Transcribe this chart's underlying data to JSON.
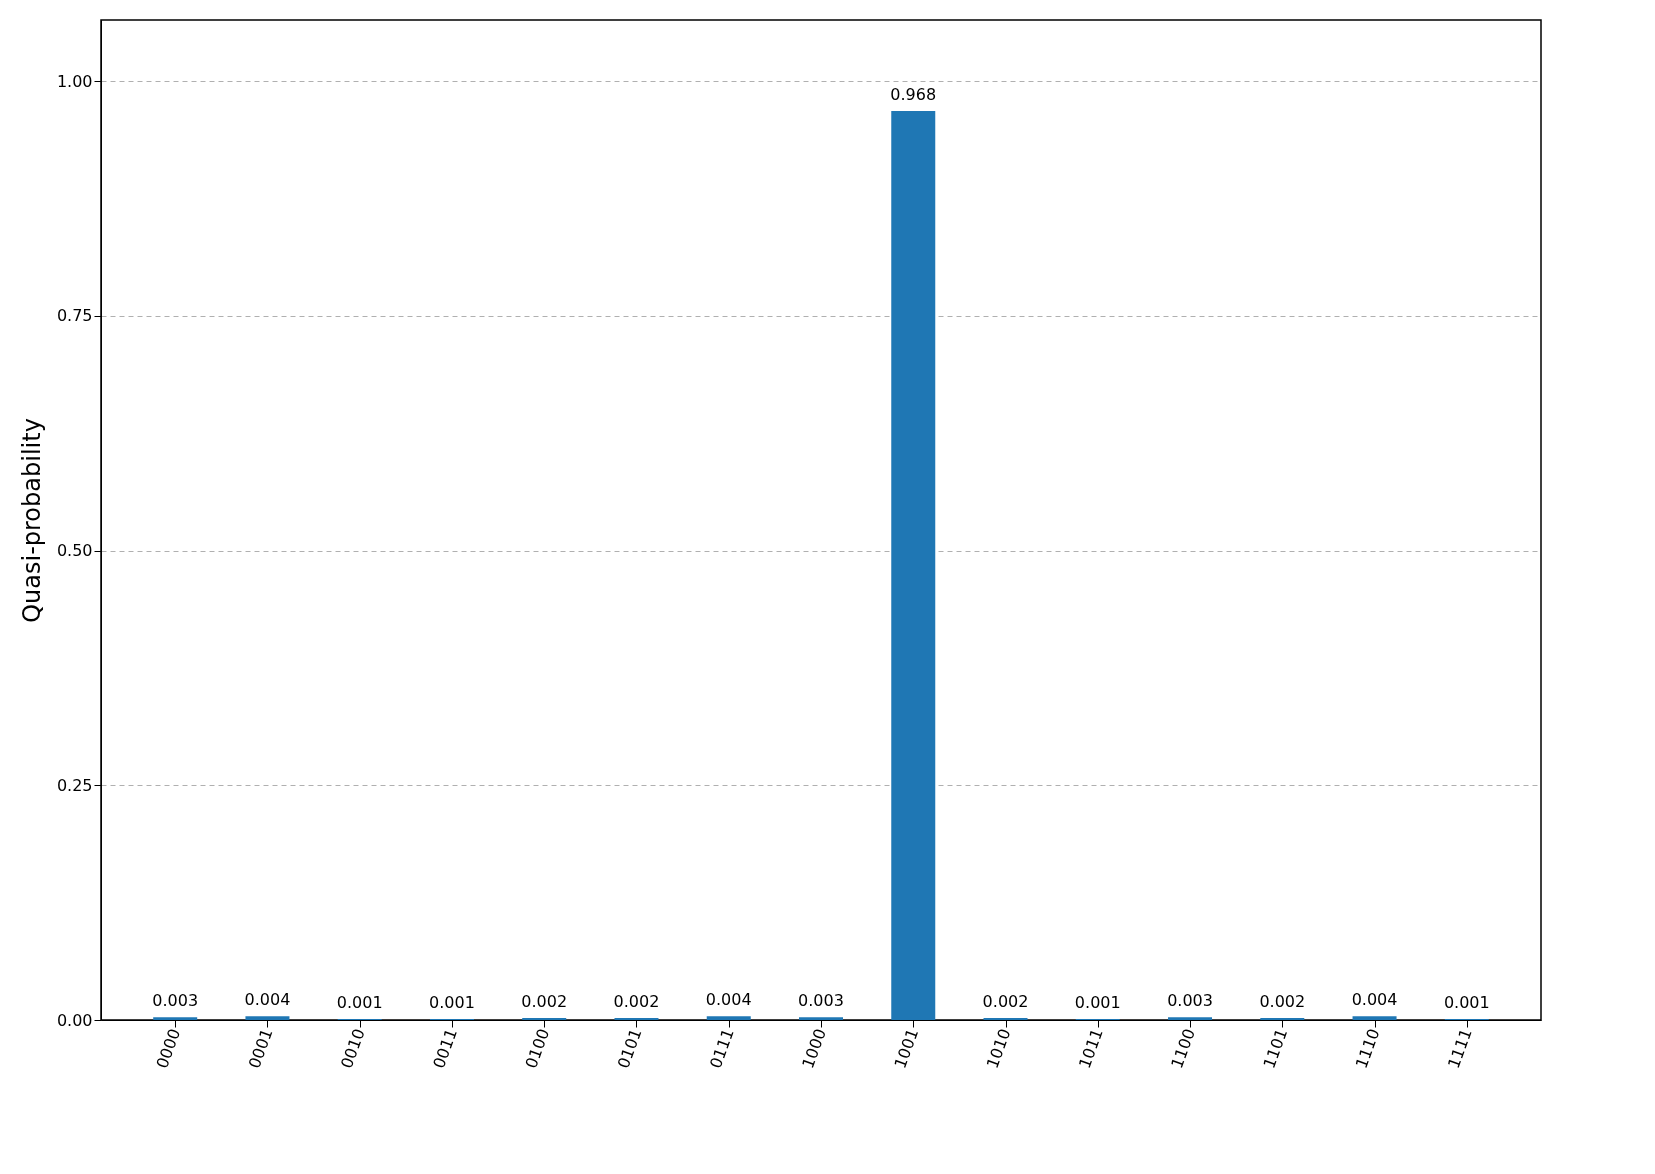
{
  "chart_data": {
    "type": "bar",
    "ylabel": "Quasi-probability",
    "categories": [
      "0000",
      "0001",
      "0010",
      "0011",
      "0100",
      "0101",
      "0111",
      "1000",
      "1001",
      "1010",
      "1011",
      "1100",
      "1101",
      "1110",
      "1111"
    ],
    "values": [
      0.003,
      0.004,
      0.001,
      0.001,
      0.002,
      0.002,
      0.004,
      0.003,
      0.968,
      0.002,
      0.001,
      0.003,
      0.002,
      0.004,
      0.001
    ],
    "color": "#1f77b4",
    "ylim": [
      0,
      1.065
    ],
    "yticks": [
      {
        "value": 0,
        "label": "0.00"
      },
      {
        "value": 0.25,
        "label": "0.25"
      },
      {
        "value": 0.5,
        "label": "0.50"
      },
      {
        "value": 0.75,
        "label": "0.75"
      },
      {
        "value": 1,
        "label": "1.00"
      }
    ],
    "grid": "y",
    "data_labels": true
  }
}
